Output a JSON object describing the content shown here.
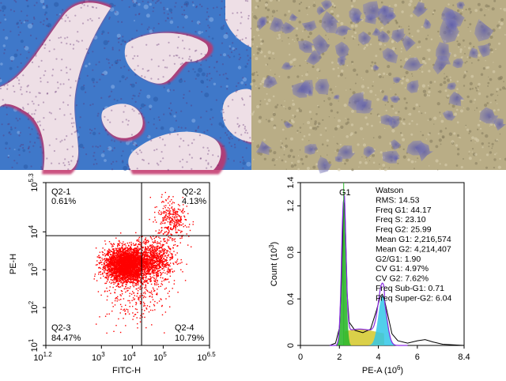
{
  "panels": {
    "top_left": {
      "kind": "histology-micrograph"
    },
    "top_right": {
      "kind": "cell-culture-micrograph"
    }
  },
  "flow_plot": {
    "xlabel": "FITC-H",
    "ylabel": "PE-H",
    "x_ticks": [
      {
        "base": "10",
        "exp": "1.2"
      },
      {
        "base": "10",
        "exp": "3"
      },
      {
        "base": "10",
        "exp": "4"
      },
      {
        "base": "10",
        "exp": "5"
      },
      {
        "base": "10",
        "exp": "6.5"
      }
    ],
    "y_ticks": [
      {
        "base": "10",
        "exp": "1"
      },
      {
        "base": "10",
        "exp": "2"
      },
      {
        "base": "10",
        "exp": "3"
      },
      {
        "base": "10",
        "exp": "4"
      },
      {
        "base": "10",
        "exp": "5.3"
      }
    ],
    "quadrants": {
      "q1": {
        "name": "Q2-1",
        "pct": "0.61%"
      },
      "q2": {
        "name": "Q2-2",
        "pct": "4.13%"
      },
      "q3": {
        "name": "Q2-3",
        "pct": "84.47%"
      },
      "q4": {
        "name": "Q2-4",
        "pct": "10.79%"
      }
    },
    "gate": {
      "x_log": 4.3,
      "y_log": 3.9
    },
    "colors": {
      "dots": "#ff0000",
      "lines": "#000000"
    }
  },
  "cycle_plot": {
    "xlabel": "PE-A (10",
    "xlabel_exp": "6",
    "xlabel_close": ")",
    "ylabel": "Count (10",
    "ylabel_exp": "3",
    "ylabel_close": ")",
    "x_ticks": [
      "0",
      "2",
      "4",
      "6",
      "8.4"
    ],
    "y_ticks": [
      "0",
      "0.4",
      "0.8",
      "1.2",
      "1.4"
    ],
    "peak_label": "G1",
    "stats": [
      "Watson",
      "RMS: 14.53",
      "Freq G1: 44.17",
      "Freq S: 23.10",
      "Freq G2: 25.99",
      "Mean G1: 2,216,574",
      "Mean G2: 4,214,407",
      "G2/G1: 1.90",
      "CV G1: 4.97%",
      "CV G2: 7.62%",
      "Freq Sub-G1: 0.71",
      "Freq Super-G2: 6.04"
    ],
    "colors": {
      "g1": "#2eb82e",
      "s": "#d4c829",
      "g2": "#33c7e8",
      "fit": "#8a2be2",
      "outline": "#000000"
    }
  },
  "chart_data": [
    {
      "type": "scatter",
      "xlabel": "FITC-H",
      "ylabel": "PE-H",
      "log_scale": true,
      "xlim": [
        "10^1.2",
        "10^6.5"
      ],
      "ylim": [
        "10^1",
        "10^5.3"
      ],
      "quadrant_percentages": {
        "Q2-1": 0.61,
        "Q2-2": 4.13,
        "Q2-3": 84.47,
        "Q2-4": 10.79
      }
    },
    {
      "type": "area",
      "xlabel": "PE-A (10^6)",
      "ylabel": "Count (10^3)",
      "xlim": [
        0,
        8.4
      ],
      "ylim": [
        0,
        1.4
      ],
      "x": [
        0,
        1.5,
        1.8,
        2.0,
        2.1,
        2.2,
        2.25,
        2.3,
        2.4,
        2.5,
        2.8,
        3.2,
        3.6,
        3.9,
        4.1,
        4.2,
        4.3,
        4.5,
        4.7,
        5.0,
        5.5,
        6.0,
        6.4,
        6.8,
        7.3,
        8.4
      ],
      "series": [
        {
          "values": [
            0,
            0.0,
            0.02,
            0.15,
            0.55,
            1.15,
            1.27,
            1.05,
            0.45,
            0.2,
            0.13,
            0.11,
            0.14,
            0.3,
            0.42,
            0.44,
            0.4,
            0.25,
            0.1,
            0.04,
            0.02,
            0.04,
            0.05,
            0.03,
            0.01,
            0
          ]
        }
      ]
    }
  ]
}
